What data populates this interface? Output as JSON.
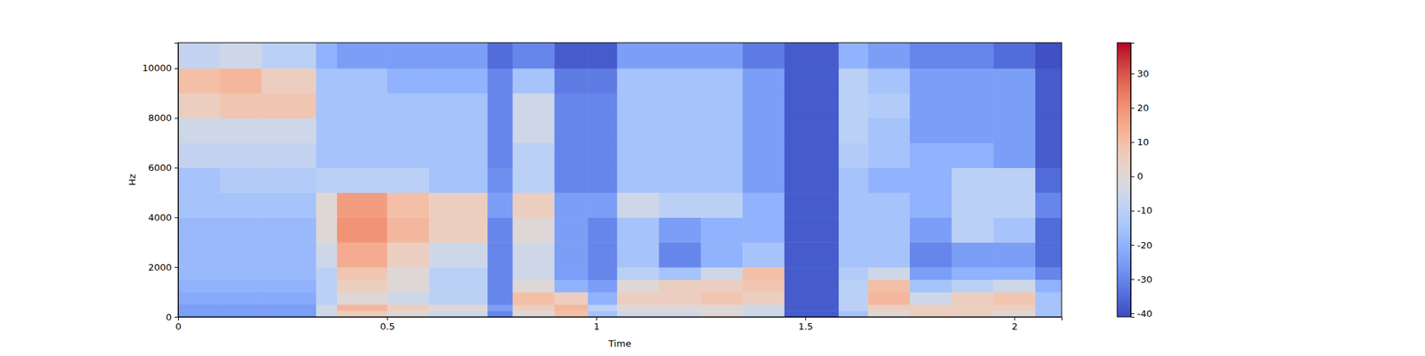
{
  "chart_data": {
    "type": "heatmap",
    "x_label": "Time",
    "y_label": "Hz",
    "xlim": [
      0,
      2.113
    ],
    "xticks": [
      0,
      0.5,
      1,
      1.5,
      2
    ],
    "ylim": [
      0,
      11025
    ],
    "yticks": [
      0,
      2000,
      4000,
      6000,
      8000,
      10000
    ],
    "x_bins": [
      0,
      0.1,
      0.2,
      0.33,
      0.38,
      0.5,
      0.6,
      0.74,
      0.8,
      0.9,
      0.98,
      1.05,
      1.15,
      1.25,
      1.35,
      1.45,
      1.58,
      1.65,
      1.75,
      1.85,
      1.95,
      2.05,
      2.113
    ],
    "y_bins": [
      0,
      250,
      500,
      1000,
      1500,
      2000,
      3000,
      4000,
      5000,
      6000,
      7000,
      8000,
      9000,
      10000,
      11025
    ],
    "cells": [
      [
        -25,
        -25,
        -25,
        -5,
        5,
        0,
        -5,
        -30,
        0,
        10,
        -15,
        -5,
        -5,
        0,
        -5,
        -38,
        -15,
        0,
        5,
        5,
        0,
        -15
      ],
      [
        -25,
        -25,
        -25,
        -5,
        12,
        5,
        0,
        -25,
        5,
        12,
        -10,
        0,
        0,
        0,
        -5,
        -38,
        -10,
        5,
        5,
        5,
        5,
        -15
      ],
      [
        -22,
        -22,
        -22,
        -10,
        0,
        -5,
        -10,
        -30,
        10,
        5,
        -20,
        5,
        5,
        8,
        5,
        -38,
        -10,
        12,
        -5,
        5,
        8,
        -15
      ],
      [
        -20,
        -20,
        -20,
        -10,
        5,
        0,
        -10,
        -30,
        0,
        -20,
        -25,
        0,
        5,
        5,
        8,
        -38,
        -10,
        10,
        -15,
        -10,
        -5,
        -20
      ],
      [
        -18,
        -18,
        -18,
        -10,
        8,
        0,
        -10,
        -30,
        -5,
        -25,
        -30,
        -10,
        -15,
        -5,
        10,
        -38,
        -12,
        -5,
        -25,
        -20,
        -20,
        -30
      ],
      [
        -18,
        -18,
        -18,
        -5,
        15,
        5,
        -5,
        -30,
        -5,
        -25,
        -30,
        -15,
        -30,
        -20,
        -15,
        -38,
        -15,
        -15,
        -30,
        -25,
        -25,
        -35
      ],
      [
        -18,
        -18,
        -18,
        0,
        20,
        12,
        5,
        -30,
        0,
        -25,
        -30,
        -15,
        -25,
        -20,
        -20,
        -38,
        -15,
        -15,
        -25,
        -10,
        -15,
        -35
      ],
      [
        -15,
        -15,
        -15,
        0,
        18,
        10,
        5,
        -25,
        5,
        -25,
        -25,
        -5,
        -10,
        -10,
        -20,
        -38,
        -15,
        -15,
        -20,
        -10,
        -10,
        -30
      ],
      [
        -15,
        -12,
        -12,
        -10,
        -10,
        -10,
        -15,
        -28,
        -10,
        -30,
        -30,
        -15,
        -15,
        -15,
        -25,
        -38,
        -15,
        -20,
        -20,
        -10,
        -10,
        -35
      ],
      [
        -8,
        -8,
        -8,
        -15,
        -15,
        -15,
        -15,
        -30,
        -10,
        -30,
        -30,
        -15,
        -15,
        -15,
        -25,
        -38,
        -12,
        -15,
        -20,
        -20,
        -25,
        -38
      ],
      [
        -5,
        -5,
        -5,
        -15,
        -15,
        -15,
        -15,
        -30,
        -5,
        -30,
        -30,
        -15,
        -15,
        -15,
        -25,
        -38,
        -10,
        -15,
        -25,
        -25,
        -25,
        -38
      ],
      [
        5,
        8,
        8,
        -15,
        -15,
        -15,
        -15,
        -30,
        -5,
        -30,
        -30,
        -15,
        -15,
        -15,
        -25,
        -38,
        -10,
        -12,
        -25,
        -25,
        -25,
        -38
      ],
      [
        10,
        12,
        5,
        -15,
        -15,
        -20,
        -20,
        -30,
        -15,
        -32,
        -32,
        -15,
        -15,
        -15,
        -25,
        -38,
        -10,
        -15,
        -25,
        -25,
        -25,
        -38
      ],
      [
        -8,
        -5,
        -10,
        -20,
        -25,
        -25,
        -25,
        -35,
        -30,
        -38,
        -38,
        -25,
        -25,
        -25,
        -32,
        -38,
        -20,
        -25,
        -30,
        -30,
        -35,
        -40
      ]
    ],
    "color_range": [
      -41,
      39
    ],
    "color_ticks": [
      -40,
      -30,
      -20,
      -10,
      0,
      10,
      20,
      30
    ]
  }
}
